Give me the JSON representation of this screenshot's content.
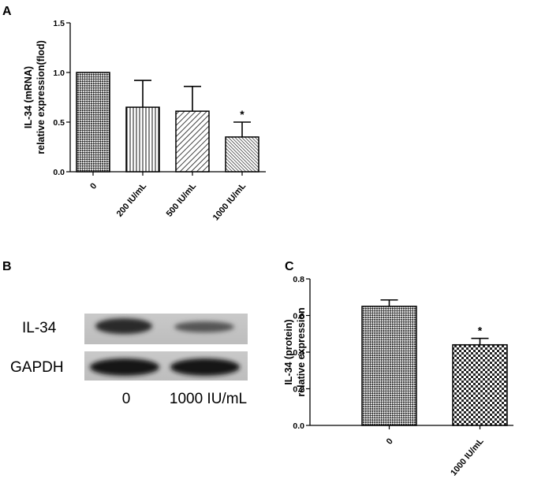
{
  "panels": {
    "a": "A",
    "b": "B",
    "c": "C"
  },
  "chart_data": [
    {
      "panel": "A",
      "type": "bar",
      "title": "",
      "xlabel": "",
      "ylabel": "IL-34 (mRNA)\nrelative expression(flod)",
      "categories": [
        "0",
        "200 IU/mL",
        "500  IU/mL",
        "1000  IU/mL"
      ],
      "values": [
        1.0,
        0.65,
        0.61,
        0.35
      ],
      "errors": [
        0.0,
        0.27,
        0.25,
        0.15
      ],
      "significance": [
        "",
        "",
        "",
        "*"
      ],
      "patterns": [
        "checker-diag",
        "vertical",
        "diagonal-wide",
        "diagonal-dense"
      ],
      "ylim": [
        0,
        1.5
      ],
      "yticks": [
        "0.0",
        "0.5",
        "1.0",
        "1.5"
      ]
    },
    {
      "panel": "C",
      "type": "bar",
      "title": "",
      "xlabel": "",
      "ylabel": "IL-34 (protein)\nrelative expression",
      "categories": [
        "0",
        "1000  IU/mL"
      ],
      "values": [
        0.65,
        0.44
      ],
      "errors": [
        0.035,
        0.035
      ],
      "significance": [
        "",
        "*"
      ],
      "patterns": [
        "checker-diag",
        "checker-small"
      ],
      "ylim": [
        0,
        0.8
      ],
      "yticks": [
        "0.0",
        "0.2",
        "0.4",
        "0.6",
        "0.8"
      ]
    }
  ],
  "western_blot": {
    "rows": [
      "IL-34",
      "GAPDH"
    ],
    "lanes": [
      "0",
      "1000 IU/mL"
    ]
  }
}
